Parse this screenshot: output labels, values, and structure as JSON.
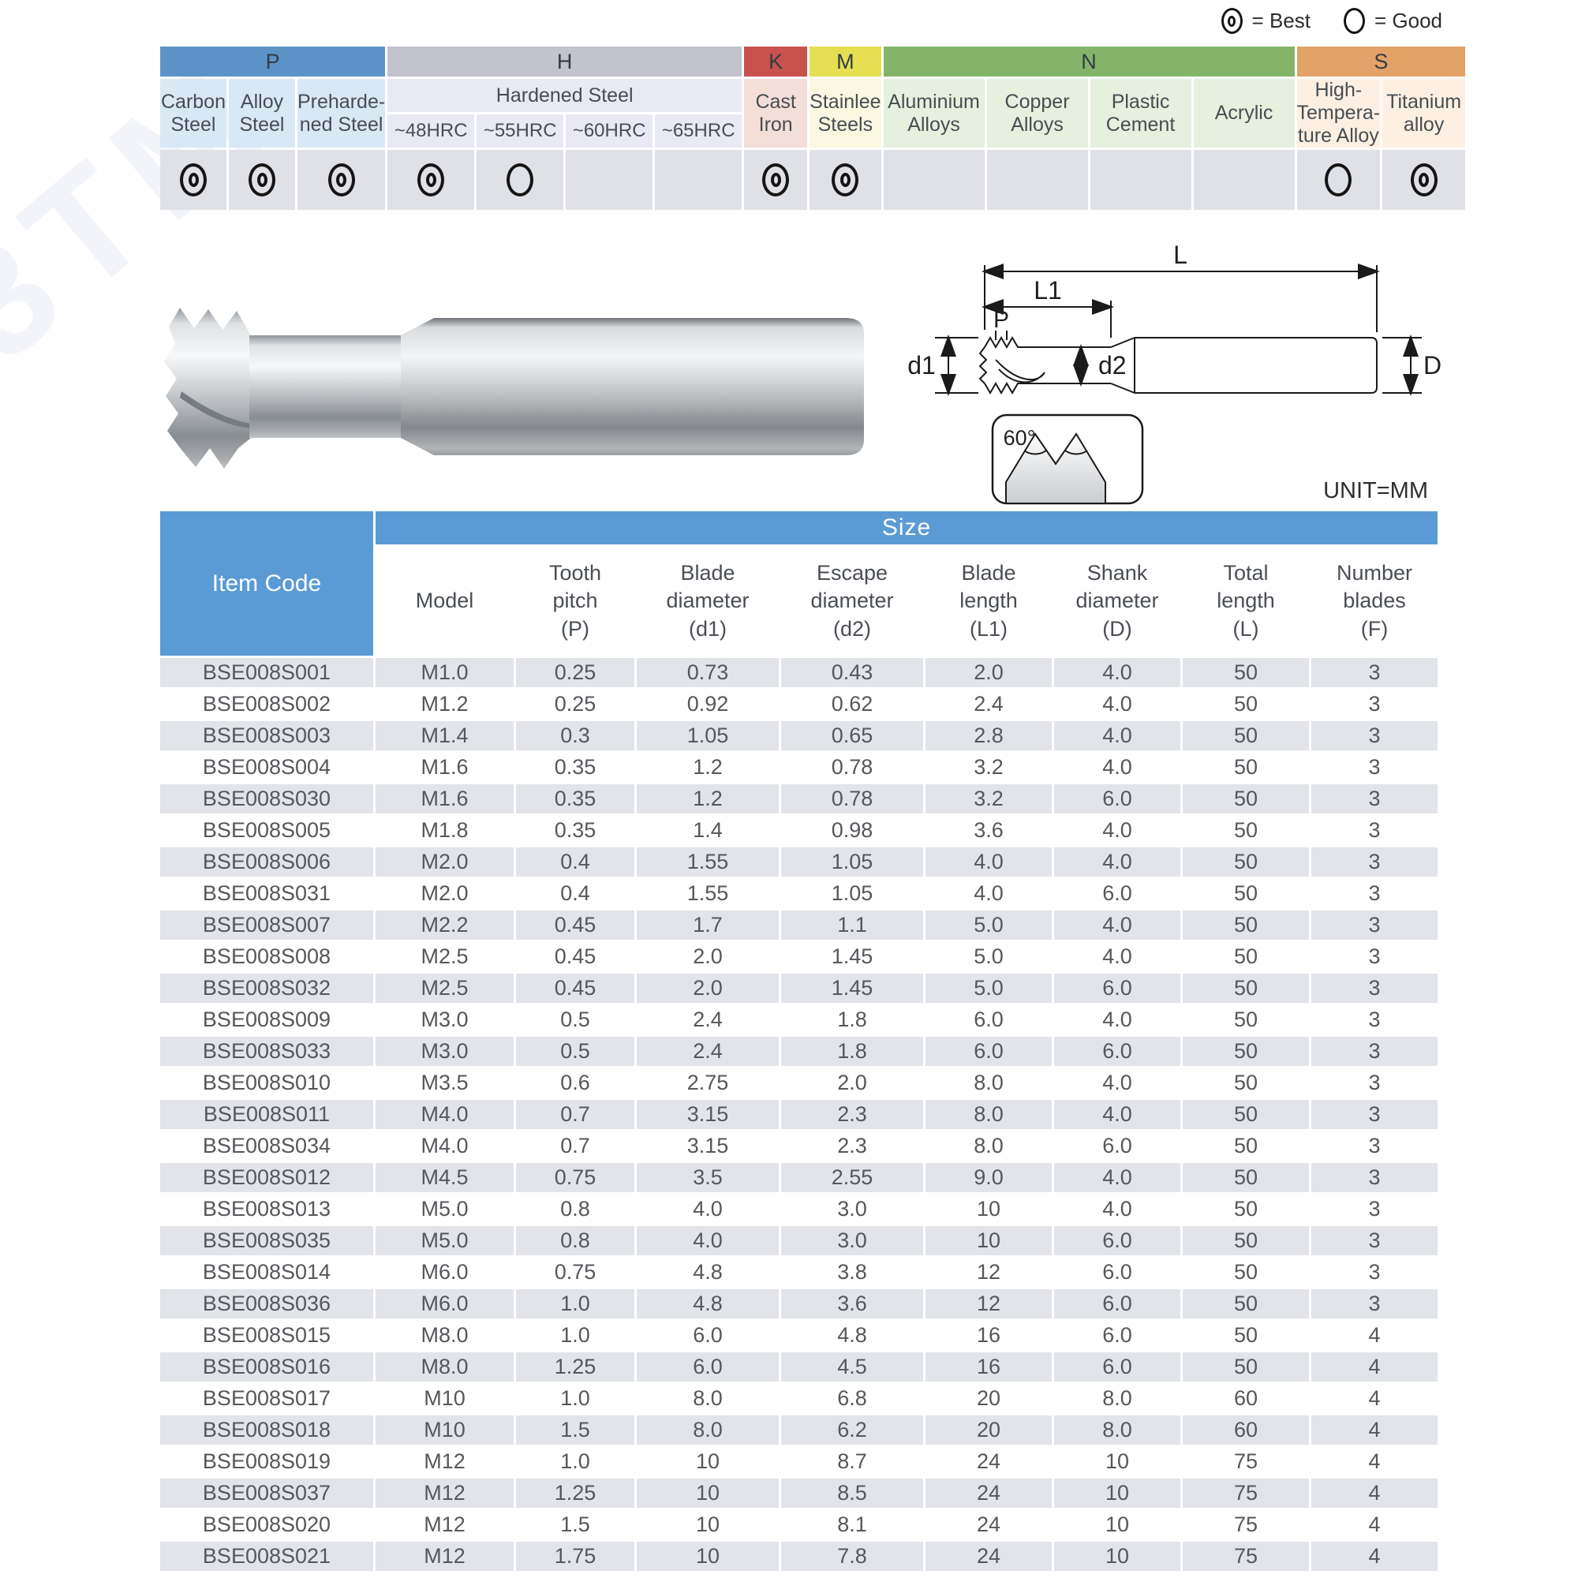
{
  "watermark": "3TM",
  "legend": {
    "best_label": "= Best",
    "good_label": "= Good"
  },
  "material_table": {
    "groups": [
      {
        "code": "P",
        "color": "#5d92c6",
        "tint": "#d9e8f5"
      },
      {
        "code": "H",
        "color": "#c2c3cc",
        "tint": "#e9e9f4"
      },
      {
        "code": "K",
        "color": "#c8524e",
        "tint": "#f3ded8"
      },
      {
        "code": "M",
        "color": "#e6df52",
        "tint": "#fbf8e2"
      },
      {
        "code": "N",
        "color": "#84b46a",
        "tint": "#e6f0de"
      },
      {
        "code": "S",
        "color": "#e2a268",
        "tint": "#fdf0e3"
      }
    ],
    "materials": [
      "Carbon\nSteel",
      "Alloy\nSteel",
      "Preharde-\nned Steel",
      "Cast Iron",
      "Stainlee\nSteels",
      "Aluminium\nAlloys",
      "Copper\nAlloys",
      "Plastic\nCement",
      "Acrylic",
      "High-\nTempera-\nture Alloy",
      "Titanium\nalloy"
    ],
    "hardened_label": "Hardened Steel",
    "hrc_labels": [
      "~48HRC",
      "~55HRC",
      "~60HRC",
      "~65HRC"
    ],
    "ratings": [
      "best",
      "best",
      "best",
      "best",
      "good",
      "",
      "",
      "best",
      "best",
      "",
      "",
      "",
      "",
      "good",
      "best"
    ],
    "rating_cell_color": "#e0e1e6"
  },
  "diagram": {
    "dim_total_length": "L",
    "dim_blade_length": "L1",
    "dim_pitch": "P",
    "dim_blade_diameter": "d1",
    "dim_escape_diameter": "d2",
    "dim_shank_diameter": "D",
    "thread_angle": "60°",
    "unit_note": "UNIT=MM"
  },
  "size_table": {
    "item_code_header": "Item Code",
    "size_header": "Size",
    "header_color": "#5b9bd5",
    "alt_row_color": "#e2e4e9",
    "columns": [
      "Model",
      "Tooth\npitch\n(P)",
      "Blade\ndiameter\n(d1)",
      "Escape\ndiameter\n(d2)",
      "Blade\nlength\n(L1)",
      "Shank\ndiameter\n(D)",
      "Total\nlength\n(L)",
      "Number\nblades\n(F)"
    ],
    "rows": [
      [
        "BSE008S001",
        "M1.0",
        "0.25",
        "0.73",
        "0.43",
        "2.0",
        "4.0",
        "50",
        "3"
      ],
      [
        "BSE008S002",
        "M1.2",
        "0.25",
        "0.92",
        "0.62",
        "2.4",
        "4.0",
        "50",
        "3"
      ],
      [
        "BSE008S003",
        "M1.4",
        "0.3",
        "1.05",
        "0.65",
        "2.8",
        "4.0",
        "50",
        "3"
      ],
      [
        "BSE008S004",
        "M1.6",
        "0.35",
        "1.2",
        "0.78",
        "3.2",
        "4.0",
        "50",
        "3"
      ],
      [
        "BSE008S030",
        "M1.6",
        "0.35",
        "1.2",
        "0.78",
        "3.2",
        "6.0",
        "50",
        "3"
      ],
      [
        "BSE008S005",
        "M1.8",
        "0.35",
        "1.4",
        "0.98",
        "3.6",
        "4.0",
        "50",
        "3"
      ],
      [
        "BSE008S006",
        "M2.0",
        "0.4",
        "1.55",
        "1.05",
        "4.0",
        "4.0",
        "50",
        "3"
      ],
      [
        "BSE008S031",
        "M2.0",
        "0.4",
        "1.55",
        "1.05",
        "4.0",
        "6.0",
        "50",
        "3"
      ],
      [
        "BSE008S007",
        "M2.2",
        "0.45",
        "1.7",
        "1.1",
        "5.0",
        "4.0",
        "50",
        "3"
      ],
      [
        "BSE008S008",
        "M2.5",
        "0.45",
        "2.0",
        "1.45",
        "5.0",
        "4.0",
        "50",
        "3"
      ],
      [
        "BSE008S032",
        "M2.5",
        "0.45",
        "2.0",
        "1.45",
        "5.0",
        "6.0",
        "50",
        "3"
      ],
      [
        "BSE008S009",
        "M3.0",
        "0.5",
        "2.4",
        "1.8",
        "6.0",
        "4.0",
        "50",
        "3"
      ],
      [
        "BSE008S033",
        "M3.0",
        "0.5",
        "2.4",
        "1.8",
        "6.0",
        "6.0",
        "50",
        "3"
      ],
      [
        "BSE008S010",
        "M3.5",
        "0.6",
        "2.75",
        "2.0",
        "8.0",
        "4.0",
        "50",
        "3"
      ],
      [
        "BSE008S011",
        "M4.0",
        "0.7",
        "3.15",
        "2.3",
        "8.0",
        "4.0",
        "50",
        "3"
      ],
      [
        "BSE008S034",
        "M4.0",
        "0.7",
        "3.15",
        "2.3",
        "8.0",
        "6.0",
        "50",
        "3"
      ],
      [
        "BSE008S012",
        "M4.5",
        "0.75",
        "3.5",
        "2.55",
        "9.0",
        "4.0",
        "50",
        "3"
      ],
      [
        "BSE008S013",
        "M5.0",
        "0.8",
        "4.0",
        "3.0",
        "10",
        "4.0",
        "50",
        "3"
      ],
      [
        "BSE008S035",
        "M5.0",
        "0.8",
        "4.0",
        "3.0",
        "10",
        "6.0",
        "50",
        "3"
      ],
      [
        "BSE008S014",
        "M6.0",
        "0.75",
        "4.8",
        "3.8",
        "12",
        "6.0",
        "50",
        "3"
      ],
      [
        "BSE008S036",
        "M6.0",
        "1.0",
        "4.8",
        "3.6",
        "12",
        "6.0",
        "50",
        "3"
      ],
      [
        "BSE008S015",
        "M8.0",
        "1.0",
        "6.0",
        "4.8",
        "16",
        "6.0",
        "50",
        "4"
      ],
      [
        "BSE008S016",
        "M8.0",
        "1.25",
        "6.0",
        "4.5",
        "16",
        "6.0",
        "50",
        "4"
      ],
      [
        "BSE008S017",
        "M10",
        "1.0",
        "8.0",
        "6.8",
        "20",
        "8.0",
        "60",
        "4"
      ],
      [
        "BSE008S018",
        "M10",
        "1.5",
        "8.0",
        "6.2",
        "20",
        "8.0",
        "60",
        "4"
      ],
      [
        "BSE008S019",
        "M12",
        "1.0",
        "10",
        "8.7",
        "24",
        "10",
        "75",
        "4"
      ],
      [
        "BSE008S037",
        "M12",
        "1.25",
        "10",
        "8.5",
        "24",
        "10",
        "75",
        "4"
      ],
      [
        "BSE008S020",
        "M12",
        "1.5",
        "10",
        "8.1",
        "24",
        "10",
        "75",
        "4"
      ],
      [
        "BSE008S021",
        "M12",
        "1.75",
        "10",
        "7.8",
        "24",
        "10",
        "75",
        "4"
      ]
    ]
  }
}
